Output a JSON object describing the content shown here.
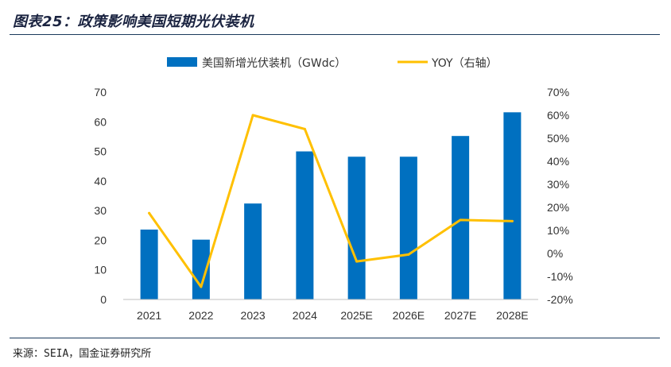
{
  "figure": {
    "title": "图表25：政策影响美国短期光伏装机",
    "source": "来源：SEIA，国金证券研究所"
  },
  "colors": {
    "bar": "#0070c0",
    "line": "#ffc000",
    "rule": "#1a3a5c"
  },
  "chart_data": {
    "type": "bar",
    "categories": [
      "2021",
      "2022",
      "2023",
      "2024",
      "2025E",
      "2026E",
      "2027E",
      "2028E"
    ],
    "series": [
      {
        "name": "美国新增光伏装机（GWdc）",
        "type": "bar",
        "axis": "left",
        "values": [
          23.6,
          20.2,
          32.4,
          50.0,
          48.2,
          48.2,
          55.2,
          63.2
        ]
      },
      {
        "name": "YOY（右轴）",
        "type": "line",
        "axis": "right",
        "values": [
          0.175,
          -0.145,
          0.6,
          0.54,
          -0.035,
          -0.005,
          0.145,
          0.14
        ]
      }
    ],
    "y_left": {
      "ticks": [
        "0",
        "10",
        "20",
        "30",
        "40",
        "50",
        "60",
        "70"
      ],
      "ylim": [
        0,
        70
      ]
    },
    "y_right": {
      "ticks": [
        "-20%",
        "-10%",
        "0%",
        "10%",
        "20%",
        "30%",
        "40%",
        "50%",
        "60%",
        "70%"
      ],
      "ylim": [
        -0.2,
        0.7
      ]
    },
    "legend": "top-center",
    "grid": false
  }
}
